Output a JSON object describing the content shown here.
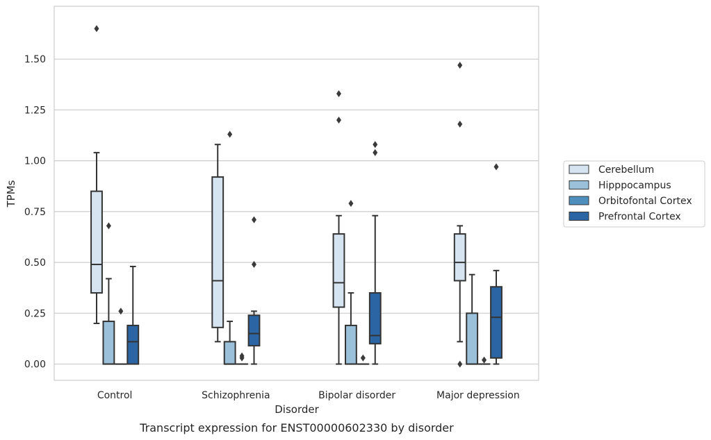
{
  "chart_data": {
    "type": "box",
    "xlabel": "Disorder",
    "ylabel": "TPMs",
    "caption": "Transcript expression for ENST00000602330 by disorder",
    "ylim": [
      -0.08,
      1.76
    ],
    "yticks": [
      "0.00",
      "0.25",
      "0.50",
      "0.75",
      "1.00",
      "1.25",
      "1.50"
    ],
    "grid": "horizontal",
    "legend_position": "right",
    "categories": [
      "Control",
      "Schizophrenia",
      "Bipolar disorder",
      "Major depression"
    ],
    "series": [
      {
        "name": "Cerebellum",
        "color": "#d6e4f2",
        "boxes": [
          {
            "q1": 0.35,
            "median": 0.49,
            "q3": 0.85,
            "whisker_low": 0.2,
            "whisker_high": 1.04,
            "outliers": [
              1.65
            ]
          },
          {
            "q1": 0.18,
            "median": 0.41,
            "q3": 0.92,
            "whisker_low": 0.11,
            "whisker_high": 1.08,
            "outliers": []
          },
          {
            "q1": 0.28,
            "median": 0.4,
            "q3": 0.64,
            "whisker_low": 0.0,
            "whisker_high": 0.73,
            "outliers": [
              1.33,
              1.2
            ]
          },
          {
            "q1": 0.41,
            "median": 0.5,
            "q3": 0.64,
            "whisker_low": 0.11,
            "whisker_high": 0.68,
            "outliers": [
              1.47,
              1.18,
              0.0
            ]
          }
        ]
      },
      {
        "name": "Hipppocampus",
        "color": "#9ac1d9",
        "boxes": [
          {
            "q1": 0.0,
            "median": 0.0,
            "q3": 0.21,
            "whisker_low": 0.0,
            "whisker_high": 0.42,
            "outliers": [
              0.68
            ]
          },
          {
            "q1": 0.0,
            "median": 0.0,
            "q3": 0.11,
            "whisker_low": 0.0,
            "whisker_high": 0.21,
            "outliers": [
              1.13
            ]
          },
          {
            "q1": 0.0,
            "median": 0.0,
            "q3": 0.19,
            "whisker_low": 0.0,
            "whisker_high": 0.35,
            "outliers": [
              0.79
            ]
          },
          {
            "q1": 0.0,
            "median": 0.0,
            "q3": 0.25,
            "whisker_low": 0.0,
            "whisker_high": 0.44,
            "outliers": []
          }
        ]
      },
      {
        "name": "Orbitofontal Cortex",
        "color": "#4e8fbe",
        "boxes": [
          {
            "q1": 0.0,
            "median": 0.0,
            "q3": 0.0,
            "whisker_low": 0.0,
            "whisker_high": 0.0,
            "outliers": [
              0.26
            ]
          },
          {
            "q1": 0.0,
            "median": 0.0,
            "q3": 0.0,
            "whisker_low": 0.0,
            "whisker_high": 0.0,
            "outliers": [
              0.04,
              0.03
            ]
          },
          {
            "q1": 0.0,
            "median": 0.0,
            "q3": 0.0,
            "whisker_low": 0.0,
            "whisker_high": 0.0,
            "outliers": [
              0.03
            ]
          },
          {
            "q1": 0.0,
            "median": 0.0,
            "q3": 0.0,
            "whisker_low": 0.0,
            "whisker_high": 0.0,
            "outliers": [
              0.02
            ]
          }
        ]
      },
      {
        "name": "Prefrontal Cortex",
        "color": "#2b65a3",
        "boxes": [
          {
            "q1": 0.0,
            "median": 0.11,
            "q3": 0.19,
            "whisker_low": 0.0,
            "whisker_high": 0.48,
            "outliers": []
          },
          {
            "q1": 0.09,
            "median": 0.15,
            "q3": 0.24,
            "whisker_low": 0.0,
            "whisker_high": 0.26,
            "outliers": [
              0.71,
              0.49
            ]
          },
          {
            "q1": 0.1,
            "median": 0.14,
            "q3": 0.35,
            "whisker_low": 0.0,
            "whisker_high": 0.73,
            "outliers": [
              1.08,
              1.04
            ]
          },
          {
            "q1": 0.03,
            "median": 0.23,
            "q3": 0.38,
            "whisker_low": 0.0,
            "whisker_high": 0.46,
            "outliers": [
              0.97
            ]
          }
        ]
      }
    ]
  }
}
